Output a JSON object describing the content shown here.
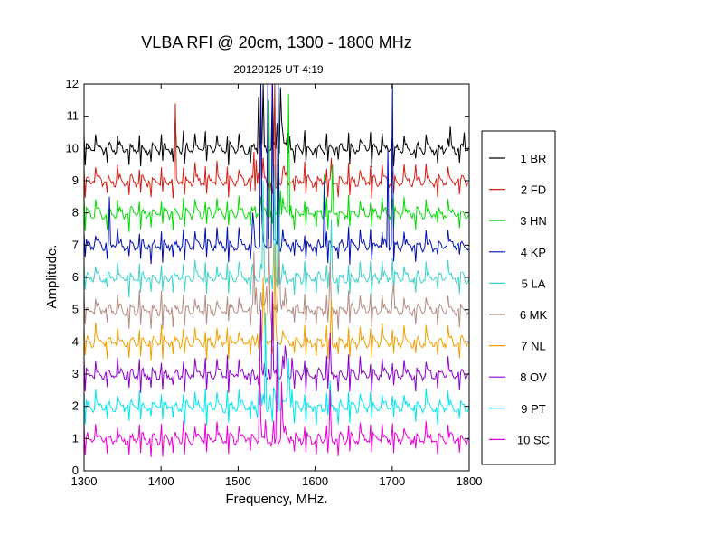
{
  "chart_data": {
    "type": "line",
    "title": "VLBA RFI @ 20cm, 1300 - 1800 MHz",
    "subtitle": "20120125   UT 4:19",
    "xlabel": "Frequency, MHz.",
    "ylabel": "Amplitude.",
    "xlim": [
      1300,
      1800
    ],
    "ylim": [
      0,
      12
    ],
    "x_ticks": [
      "1300",
      "1400",
      "1500",
      "1600",
      "1700",
      "1800"
    ],
    "y_ticks": [
      "0",
      "1",
      "2",
      "3",
      "4",
      "5",
      "6",
      "7",
      "8",
      "9",
      "10",
      "11",
      "12"
    ],
    "legend_position": "right",
    "series": [
      {
        "name": "1 BR",
        "color": "#000000",
        "baseline": 10.0,
        "spikes": [
          {
            "x": 1419,
            "y": 10.9
          },
          {
            "x": 1527,
            "y": 11.6
          },
          {
            "x": 1532,
            "y": 12
          },
          {
            "x": 1545,
            "y": 11.8
          },
          {
            "x": 1555,
            "y": 11.9
          },
          {
            "x": 1775,
            "y": 10.7
          },
          {
            "x": 1793,
            "y": 10.5
          }
        ]
      },
      {
        "name": "2 FD",
        "color": "#d21e14",
        "baseline": 9.0,
        "spikes": [
          {
            "x": 1419,
            "y": 11.4
          },
          {
            "x": 1530,
            "y": 11.5
          },
          {
            "x": 1548,
            "y": 12
          },
          {
            "x": 1621,
            "y": 9.7
          },
          {
            "x": 1730,
            "y": 9.5
          }
        ]
      },
      {
        "name": "3 HN",
        "color": "#00dc00",
        "baseline": 8.0,
        "spikes": [
          {
            "x": 1540,
            "y": 11.5
          },
          {
            "x": 1552,
            "y": 12
          },
          {
            "x": 1565,
            "y": 12
          },
          {
            "x": 1612,
            "y": 9.2
          },
          {
            "x": 1622,
            "y": 9.5
          }
        ]
      },
      {
        "name": "4 KP",
        "color": "#0010b0",
        "baseline": 7.0,
        "spikes": [
          {
            "x": 1333,
            "y": 8.5
          },
          {
            "x": 1530,
            "y": 12
          },
          {
            "x": 1538,
            "y": 12
          },
          {
            "x": 1545,
            "y": 12
          },
          {
            "x": 1552,
            "y": 12
          },
          {
            "x": 1612,
            "y": 9.0
          },
          {
            "x": 1695,
            "y": 10.0
          },
          {
            "x": 1700,
            "y": 12
          }
        ]
      },
      {
        "name": "5 LA",
        "color": "#3cd2c8",
        "baseline": 6.0,
        "spikes": [
          {
            "x": 1533,
            "y": 9.0
          },
          {
            "x": 1548,
            "y": 9.5
          },
          {
            "x": 1552,
            "y": 8.0
          },
          {
            "x": 1621,
            "y": 7.8
          },
          {
            "x": 1700,
            "y": 6.6
          }
        ]
      },
      {
        "name": "6 MK",
        "color": "#b48c82",
        "baseline": 5.0,
        "spikes": [
          {
            "x": 1520,
            "y": 6.8
          },
          {
            "x": 1540,
            "y": 7.5
          },
          {
            "x": 1553,
            "y": 7.0
          },
          {
            "x": 1620,
            "y": 6.5
          },
          {
            "x": 1702,
            "y": 5.8
          }
        ]
      },
      {
        "name": "7 NL",
        "color": "#f0a000",
        "baseline": 4.0,
        "spikes": [
          {
            "x": 1533,
            "y": 6.0
          },
          {
            "x": 1548,
            "y": 6.2
          },
          {
            "x": 1621,
            "y": 5.3
          }
        ]
      },
      {
        "name": "8 OV",
        "color": "#8c00c8",
        "baseline": 3.0,
        "spikes": [
          {
            "x": 1530,
            "y": 5.0
          },
          {
            "x": 1545,
            "y": 5.5
          },
          {
            "x": 1620,
            "y": 4.3
          }
        ]
      },
      {
        "name": "9 PT",
        "color": "#00e6f0",
        "baseline": 2.0,
        "spikes": [
          {
            "x": 1535,
            "y": 4.6
          },
          {
            "x": 1552,
            "y": 4.0
          },
          {
            "x": 1565,
            "y": 3.5
          },
          {
            "x": 1620,
            "y": 2.8
          }
        ]
      },
      {
        "name": "10 SC",
        "color": "#e600d2",
        "baseline": 1.0,
        "spikes": [
          {
            "x": 1528,
            "y": 3.5
          },
          {
            "x": 1550,
            "y": 4.0
          },
          {
            "x": 1557,
            "y": 3.0
          },
          {
            "x": 1620,
            "y": 2.5
          }
        ]
      }
    ]
  }
}
